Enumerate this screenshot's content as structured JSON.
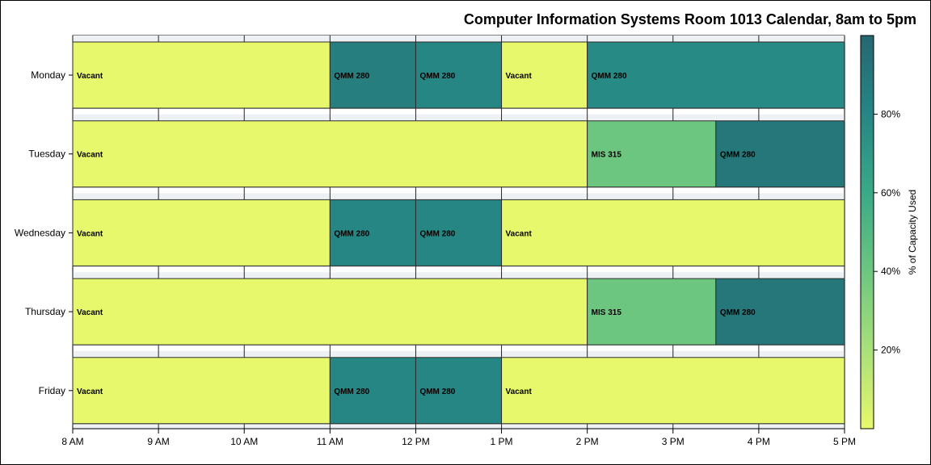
{
  "chart_data": {
    "type": "gantt",
    "title": "Computer Information Systems Room 1013 Calendar, 8am to 5pm",
    "xlim": [
      8,
      17
    ],
    "x_ticks": [
      {
        "value": 8,
        "label": "8 AM"
      },
      {
        "value": 9,
        "label": "9 AM"
      },
      {
        "value": 10,
        "label": "10 AM"
      },
      {
        "value": 11,
        "label": "11 AM"
      },
      {
        "value": 12,
        "label": "12 PM"
      },
      {
        "value": 13,
        "label": "1 PM"
      },
      {
        "value": 14,
        "label": "2 PM"
      },
      {
        "value": 15,
        "label": "3 PM"
      },
      {
        "value": 16,
        "label": "4 PM"
      },
      {
        "value": 17,
        "label": "5 PM"
      }
    ],
    "days": [
      "Monday",
      "Tuesday",
      "Wednesday",
      "Thursday",
      "Friday"
    ],
    "events": [
      {
        "day": "Monday",
        "start": 8,
        "end": 11,
        "label": "Vacant",
        "capacity_pct": 0
      },
      {
        "day": "Monday",
        "start": 11,
        "end": 12,
        "label": "QMM 280",
        "capacity_pct": 85
      },
      {
        "day": "Monday",
        "start": 12,
        "end": 13,
        "label": "QMM 280",
        "capacity_pct": 80
      },
      {
        "day": "Monday",
        "start": 13,
        "end": 14,
        "label": "Vacant",
        "capacity_pct": 0
      },
      {
        "day": "Monday",
        "start": 14,
        "end": 17,
        "label": "QMM 280",
        "capacity_pct": 78
      },
      {
        "day": "Tuesday",
        "start": 8,
        "end": 14,
        "label": "Vacant",
        "capacity_pct": 0
      },
      {
        "day": "Tuesday",
        "start": 14,
        "end": 15.5,
        "label": "MIS 315",
        "capacity_pct": 40
      },
      {
        "day": "Tuesday",
        "start": 15.5,
        "end": 17,
        "label": "QMM 280",
        "capacity_pct": 90
      },
      {
        "day": "Wednesday",
        "start": 8,
        "end": 11,
        "label": "Vacant",
        "capacity_pct": 0
      },
      {
        "day": "Wednesday",
        "start": 11,
        "end": 12,
        "label": "QMM 280",
        "capacity_pct": 80
      },
      {
        "day": "Wednesday",
        "start": 12,
        "end": 13,
        "label": "QMM 280",
        "capacity_pct": 80
      },
      {
        "day": "Wednesday",
        "start": 13,
        "end": 17,
        "label": "Vacant",
        "capacity_pct": 0
      },
      {
        "day": "Thursday",
        "start": 8,
        "end": 14,
        "label": "Vacant",
        "capacity_pct": 0
      },
      {
        "day": "Thursday",
        "start": 14,
        "end": 15.5,
        "label": "MIS 315",
        "capacity_pct": 40
      },
      {
        "day": "Thursday",
        "start": 15.5,
        "end": 17,
        "label": "QMM 280",
        "capacity_pct": 90
      },
      {
        "day": "Friday",
        "start": 8,
        "end": 11,
        "label": "Vacant",
        "capacity_pct": 0
      },
      {
        "day": "Friday",
        "start": 11,
        "end": 12,
        "label": "QMM 280",
        "capacity_pct": 80
      },
      {
        "day": "Friday",
        "start": 12,
        "end": 13,
        "label": "QMM 280",
        "capacity_pct": 80
      },
      {
        "day": "Friday",
        "start": 13,
        "end": 17,
        "label": "Vacant",
        "capacity_pct": 0
      }
    ],
    "colorbar": {
      "title": "% of Capacity Used",
      "range": [
        0,
        100
      ],
      "ticks": [
        {
          "value": 20,
          "label": "20%"
        },
        {
          "value": 40,
          "label": "40%"
        },
        {
          "value": 60,
          "label": "60%"
        },
        {
          "value": 80,
          "label": "80%"
        }
      ],
      "colors": [
        "#e8f86c",
        "#a9e07a",
        "#6dc680",
        "#3aa987",
        "#268684",
        "#266770"
      ]
    },
    "grid": true,
    "legend_position": "right"
  }
}
